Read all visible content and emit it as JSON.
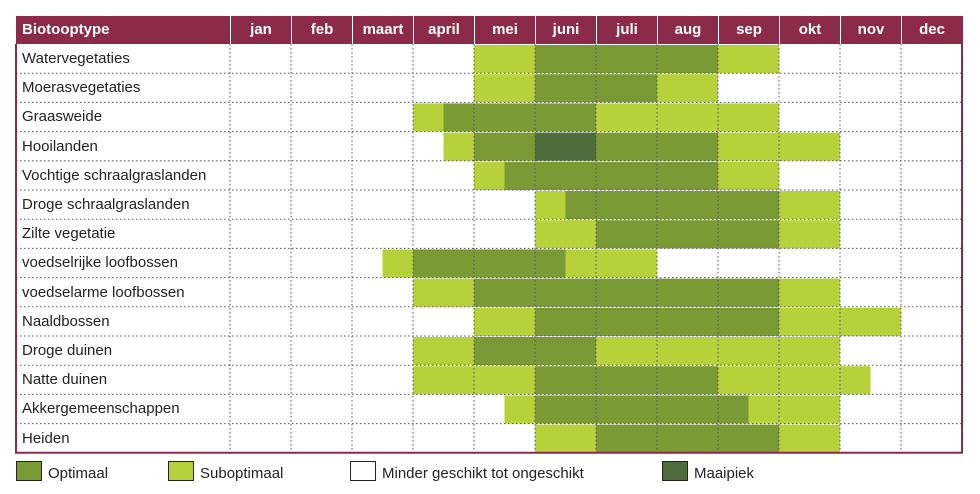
{
  "chart_data": {
    "type": "table",
    "header": "Biotooptype",
    "months": [
      "jan",
      "feb",
      "maart",
      "april",
      "mei",
      "juni",
      "juli",
      "aug",
      "sep",
      "okt",
      "nov",
      "dec"
    ],
    "colors": {
      "O": "#7a9a35",
      "S": "#b6d13a",
      "M": "#4f6b3b",
      "N": "#ffffff",
      "header": "#8c2a4a",
      "border": "#8c2a4a"
    },
    "legend": [
      {
        "key": "O",
        "label": "Optimaal"
      },
      {
        "key": "S",
        "label": "Suboptimaal"
      },
      {
        "key": "N",
        "label": "Minder geschikt tot ongeschikt"
      },
      {
        "key": "M",
        "label": "Maaipiek"
      }
    ],
    "rows": [
      {
        "label": "Watervegetaties",
        "cells": [
          "N",
          "N",
          "N",
          "N",
          "S",
          "O",
          "O",
          "O",
          "S",
          "N",
          "N",
          "N"
        ]
      },
      {
        "label": "Moerasvegetaties",
        "cells": [
          "N",
          "N",
          "N",
          "N",
          "S",
          "O",
          "O",
          "S",
          "N",
          "N",
          "N",
          "N"
        ]
      },
      {
        "label": "Graasweide",
        "cells": [
          "N",
          "N",
          "N",
          "SO",
          "O",
          "O",
          "S",
          "S",
          "S",
          "N",
          "N",
          "N"
        ]
      },
      {
        "label": "Hooilanden",
        "cells": [
          "N",
          "N",
          "N",
          "NS",
          "O",
          "M",
          "O",
          "O",
          "S",
          "S",
          "N",
          "N"
        ]
      },
      {
        "label": "Vochtige schraalgraslanden",
        "cells": [
          "N",
          "N",
          "N",
          "N",
          "SO",
          "O",
          "O",
          "O",
          "S",
          "N",
          "N",
          "N"
        ]
      },
      {
        "label": "Droge schraalgraslanden",
        "cells": [
          "N",
          "N",
          "N",
          "N",
          "N",
          "SO",
          "O",
          "O",
          "O",
          "S",
          "N",
          "N"
        ]
      },
      {
        "label": "Zilte vegetatie",
        "cells": [
          "N",
          "N",
          "N",
          "N",
          "N",
          "S",
          "O",
          "O",
          "O",
          "S",
          "N",
          "N"
        ]
      },
      {
        "label": "voedselrijke loofbossen",
        "cells": [
          "N",
          "N",
          "NS",
          "O",
          "O",
          "OS",
          "S",
          "N",
          "N",
          "N",
          "N",
          "N"
        ]
      },
      {
        "label": "voedselarme loofbossen",
        "cells": [
          "N",
          "N",
          "N",
          "S",
          "O",
          "O",
          "O",
          "O",
          "O",
          "S",
          "N",
          "N"
        ]
      },
      {
        "label": "Naaldbossen",
        "cells": [
          "N",
          "N",
          "N",
          "N",
          "S",
          "O",
          "O",
          "O",
          "O",
          "S",
          "S",
          "N"
        ]
      },
      {
        "label": "Droge duinen",
        "cells": [
          "N",
          "N",
          "N",
          "S",
          "O",
          "O",
          "S",
          "S",
          "S",
          "S",
          "N",
          "N"
        ]
      },
      {
        "label": "Natte duinen",
        "cells": [
          "N",
          "N",
          "N",
          "S",
          "S",
          "O",
          "O",
          "O",
          "S",
          "S",
          "SN",
          "N"
        ]
      },
      {
        "label": "Akkergemeenschappen",
        "cells": [
          "N",
          "N",
          "N",
          "N",
          "NS",
          "O",
          "O",
          "O",
          "OS",
          "S",
          "N",
          "N"
        ]
      },
      {
        "label": "Heiden",
        "cells": [
          "N",
          "N",
          "N",
          "N",
          "N",
          "S",
          "O",
          "O",
          "O",
          "S",
          "N",
          "N"
        ]
      }
    ]
  }
}
